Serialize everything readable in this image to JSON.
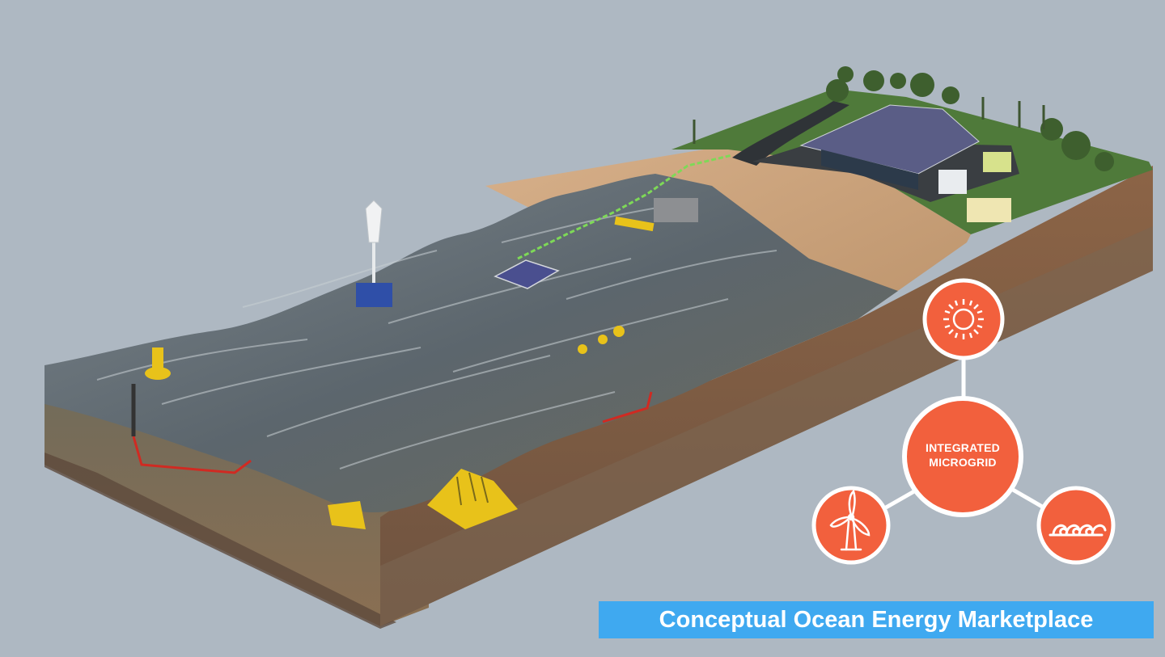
{
  "hub": {
    "line1": "INTEGRATED",
    "line2": "MICROGRID",
    "color": "#f2603d"
  },
  "nodes": [
    {
      "name": "solar",
      "icon": "sun-icon"
    },
    {
      "name": "wind",
      "icon": "wind-turbine-icon"
    },
    {
      "name": "wave",
      "icon": "waves-icon"
    }
  ],
  "banner": {
    "title": "Conceptual Ocean Energy Marketplace",
    "color": "#3fa9f0"
  },
  "colors": {
    "background": "#aeb8c2",
    "water": "#5d6870",
    "sand": "#c9a07a",
    "grass": "#4f7a3a",
    "device_yellow": "#e8c21a",
    "cable_red": "#d02a22",
    "cable_green": "#7ed957"
  }
}
